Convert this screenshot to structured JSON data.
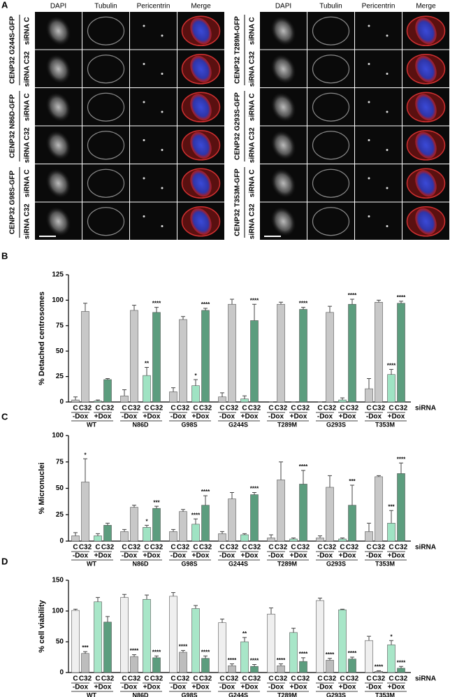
{
  "panel_a": {
    "label": "A",
    "left": {
      "headers": [
        "DAPI",
        "Tubulin",
        "Pericentrin",
        "Merge"
      ],
      "rows": [
        {
          "construct": "CENP32 G244S-GFP",
          "sirna": [
            "siRNA C",
            "siRNA C32"
          ]
        },
        {
          "construct": "CENP32 N86D-GFP",
          "sirna": [
            "siRNA C",
            "siRNA C32"
          ]
        },
        {
          "construct": "CENP32 G98S-GFP",
          "sirna": [
            "siRNA C",
            "siRNA C32"
          ]
        }
      ]
    },
    "right": {
      "headers": [
        "DAPI",
        "Tubulin",
        "Pericentrin",
        "Merge"
      ],
      "rows": [
        {
          "construct": "CENP32 T289M-GFP",
          "sirna": [
            "siRNA C",
            "siRNA C32"
          ]
        },
        {
          "construct": "CENP32 G293S-GFP",
          "sirna": [
            "siRNA C",
            "siRNA C32"
          ]
        },
        {
          "construct": "CENP32 T353M-GFP",
          "sirna": [
            "siRNA C",
            "siRNA C32"
          ]
        }
      ]
    }
  },
  "chart_data": [
    {
      "type": "bar",
      "panel": "B",
      "y_label": "% Detached centrosomes",
      "x_label": "siRNA",
      "categories": [
        "WT",
        "N86D",
        "G98S",
        "G244S",
        "T289M",
        "G293S",
        "T353M"
      ],
      "sub_groups": [
        "-Dox",
        "+Dox"
      ],
      "ylim": [
        0,
        125
      ],
      "yticks": [
        0,
        25,
        50,
        75,
        100,
        125
      ],
      "series": [
        {
          "name": "C",
          "color": "#c8c8c8",
          "values": [
            2,
            6,
            10,
            5,
            0,
            0,
            13
          ],
          "errors": [
            3,
            6,
            4,
            4,
            0,
            0,
            10
          ],
          "significance": [
            null,
            null,
            null,
            null,
            null,
            null,
            null
          ]
        },
        {
          "name": "C32",
          "color": "#c8c8c8",
          "values": [
            89,
            90,
            81,
            96,
            96,
            88,
            98
          ],
          "errors": [
            8,
            5,
            3,
            5,
            2,
            6,
            2
          ],
          "significance": [
            null,
            null,
            null,
            null,
            null,
            null,
            null
          ]
        },
        {
          "name": "C",
          "color": "#9fe3c3",
          "values": [
            1,
            26,
            16,
            3,
            0,
            2,
            27
          ],
          "errors": [
            1,
            8,
            6,
            3,
            0,
            2,
            5
          ],
          "significance": [
            null,
            "**",
            "*",
            null,
            null,
            null,
            "****"
          ]
        },
        {
          "name": "C32",
          "color": "#5c9d7e",
          "values": [
            22,
            88,
            90,
            80,
            91,
            96,
            97
          ],
          "errors": [
            1,
            5,
            2,
            16,
            2,
            5,
            2
          ],
          "significance": [
            null,
            "****",
            "****",
            "****",
            "****",
            "****",
            "****"
          ]
        }
      ]
    },
    {
      "type": "bar",
      "panel": "C",
      "y_label": "% Micronuclei",
      "x_label": "siRNA",
      "categories": [
        "WT",
        "N86D",
        "G98S",
        "G244S",
        "T289M",
        "G293S",
        "T353M"
      ],
      "sub_groups": [
        "-Dox",
        "+Dox"
      ],
      "ylim": [
        0,
        100
      ],
      "yticks": [
        0,
        25,
        50,
        75,
        100
      ],
      "series": [
        {
          "name": "C",
          "color": "#c8c8c8",
          "values": [
            5,
            9,
            9,
            7,
            3,
            3,
            9
          ],
          "errors": [
            3,
            2,
            2,
            2,
            3,
            2,
            8
          ],
          "significance": [
            null,
            null,
            null,
            null,
            null,
            null,
            null
          ]
        },
        {
          "name": "C32",
          "color": "#c8c8c8",
          "values": [
            56,
            32,
            28,
            40,
            58,
            51,
            61
          ],
          "errors": [
            22,
            2,
            2,
            6,
            17,
            11,
            1
          ],
          "significance": [
            "*",
            null,
            null,
            null,
            null,
            null,
            null
          ]
        },
        {
          "name": "C",
          "color": "#9fe3c3",
          "values": [
            5,
            13,
            16,
            6,
            2,
            2,
            17
          ],
          "errors": [
            2,
            2,
            5,
            1,
            1,
            1,
            12
          ],
          "significance": [
            null,
            "*",
            "****",
            null,
            null,
            null,
            "***"
          ]
        },
        {
          "name": "C32",
          "color": "#5c9d7e",
          "values": [
            15,
            31,
            34,
            44,
            54,
            34,
            64
          ],
          "errors": [
            2,
            2,
            9,
            2,
            13,
            19,
            10
          ],
          "significance": [
            null,
            "***",
            "****",
            "****",
            "****",
            "***",
            "****"
          ]
        }
      ]
    },
    {
      "type": "bar",
      "panel": "D",
      "y_label": "% cell viability",
      "x_label": "siRNA",
      "categories": [
        "WT",
        "N86D",
        "G98S",
        "G244S",
        "T289M",
        "G293S",
        "T353M"
      ],
      "sub_groups": [
        "-Dox",
        "+Dox"
      ],
      "ylim": [
        0,
        150
      ],
      "yticks": [
        0,
        50,
        100,
        150
      ],
      "series": [
        {
          "name": "C",
          "color": "#efefef",
          "values": [
            101,
            122,
            124,
            81,
            95,
            117,
            52
          ],
          "errors": [
            2,
            5,
            6,
            6,
            10,
            4,
            7
          ],
          "significance": [
            null,
            null,
            null,
            null,
            null,
            null,
            null
          ]
        },
        {
          "name": "C32",
          "color": "#bdbdbd",
          "values": [
            31,
            26,
            33,
            11,
            11,
            20,
            2
          ],
          "errors": [
            3,
            3,
            3,
            3,
            3,
            3,
            1
          ],
          "significance": [
            "***",
            "****",
            "****",
            "****",
            "****",
            "****",
            "****"
          ]
        },
        {
          "name": "C",
          "color": "#a8e6c8",
          "values": [
            115,
            119,
            104,
            50,
            65,
            102,
            45
          ],
          "errors": [
            7,
            7,
            5,
            7,
            7,
            1,
            7
          ],
          "significance": [
            null,
            null,
            null,
            "**",
            null,
            null,
            "*"
          ]
        },
        {
          "name": "C32",
          "color": "#5c9d7e",
          "values": [
            82,
            24,
            23,
            10,
            18,
            22,
            7
          ],
          "errors": [
            9,
            3,
            4,
            3,
            6,
            3,
            3
          ],
          "significance": [
            null,
            "****",
            "****",
            "****",
            "****",
            "****",
            "****"
          ]
        }
      ]
    }
  ]
}
